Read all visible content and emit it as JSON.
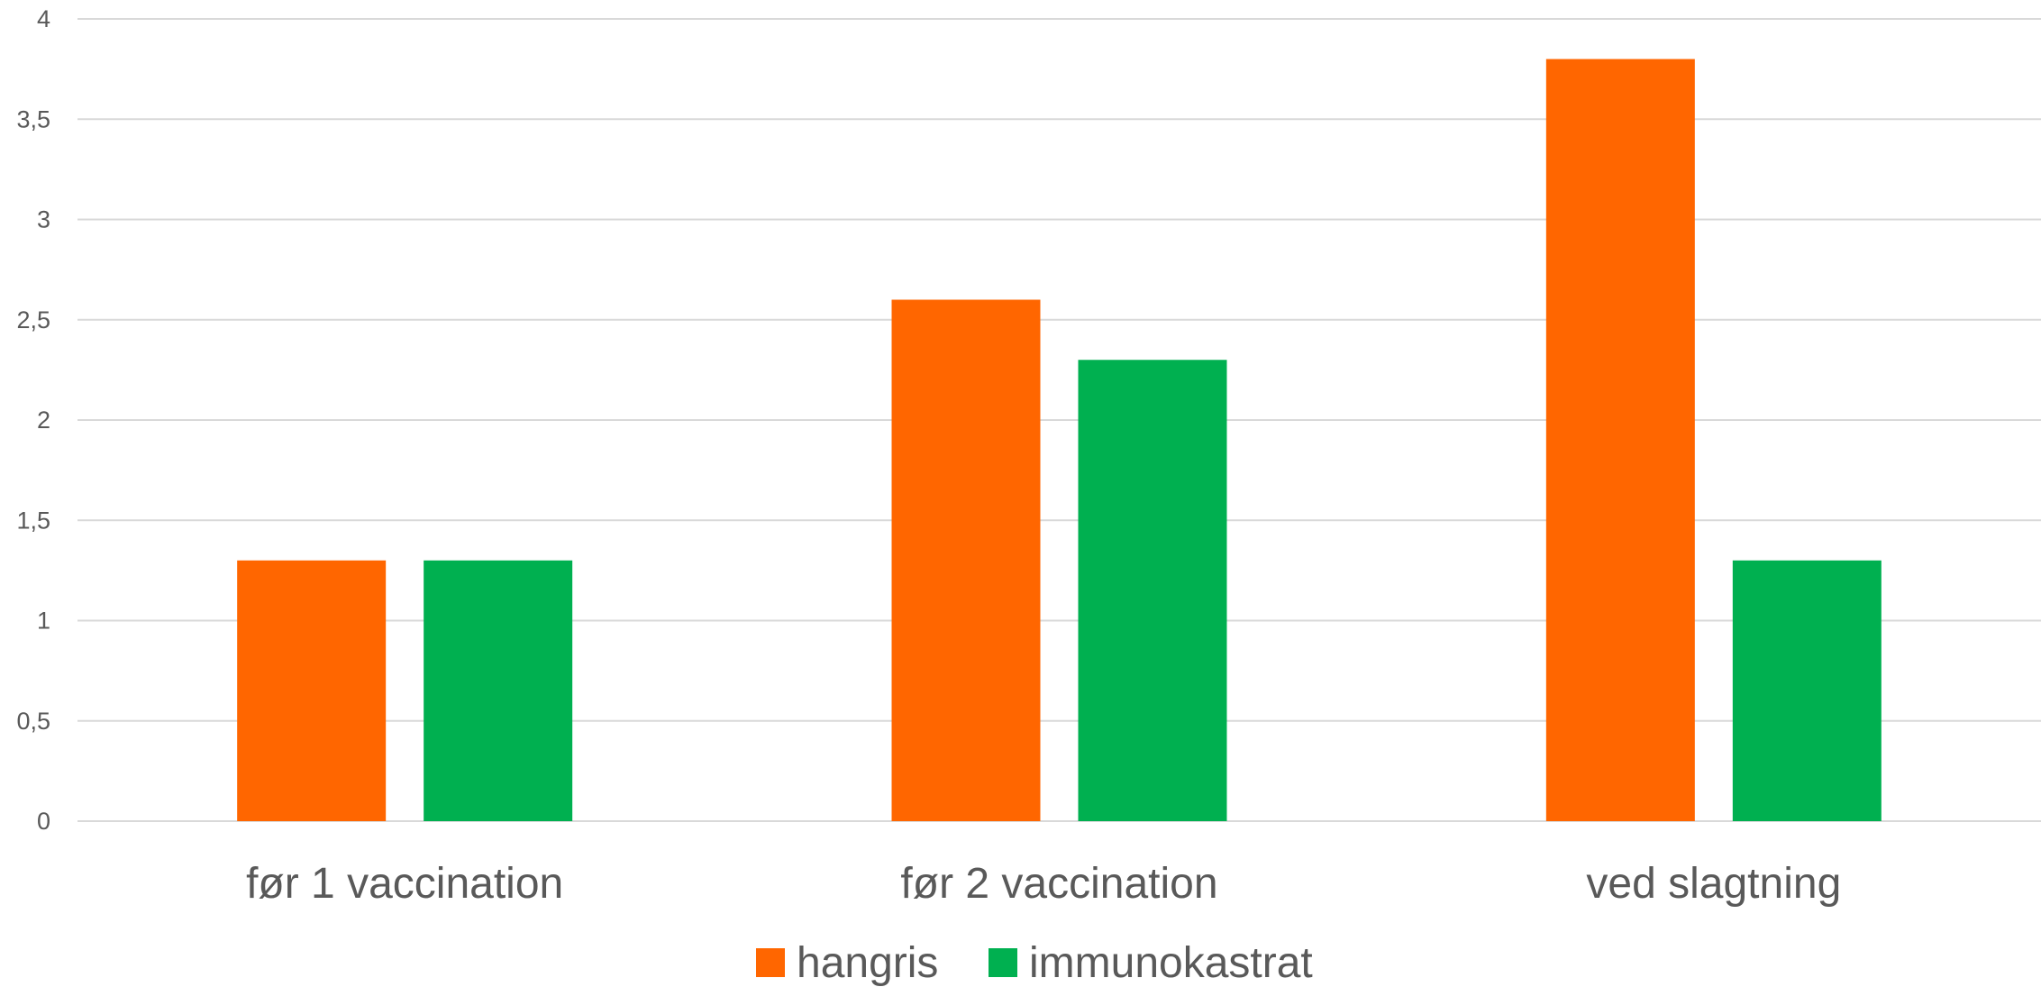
{
  "chart_data": {
    "type": "bar",
    "title": "",
    "xlabel": "",
    "ylabel": "",
    "categories": [
      "før 1 vaccination",
      "før 2 vaccination",
      "ved slagtning"
    ],
    "series": [
      {
        "name": "hangris",
        "values": [
          1.3,
          2.6,
          3.8
        ],
        "color": "#ff6600"
      },
      {
        "name": "immunokastrat",
        "values": [
          1.3,
          2.3,
          1.3
        ],
        "color": "#00b050"
      }
    ],
    "ylim": [
      0,
      4
    ],
    "yticks": [
      "0",
      "0,5",
      "1",
      "1,5",
      "2",
      "2,5",
      "3",
      "3,5",
      "4"
    ],
    "grid": true,
    "legend_position": "bottom"
  }
}
